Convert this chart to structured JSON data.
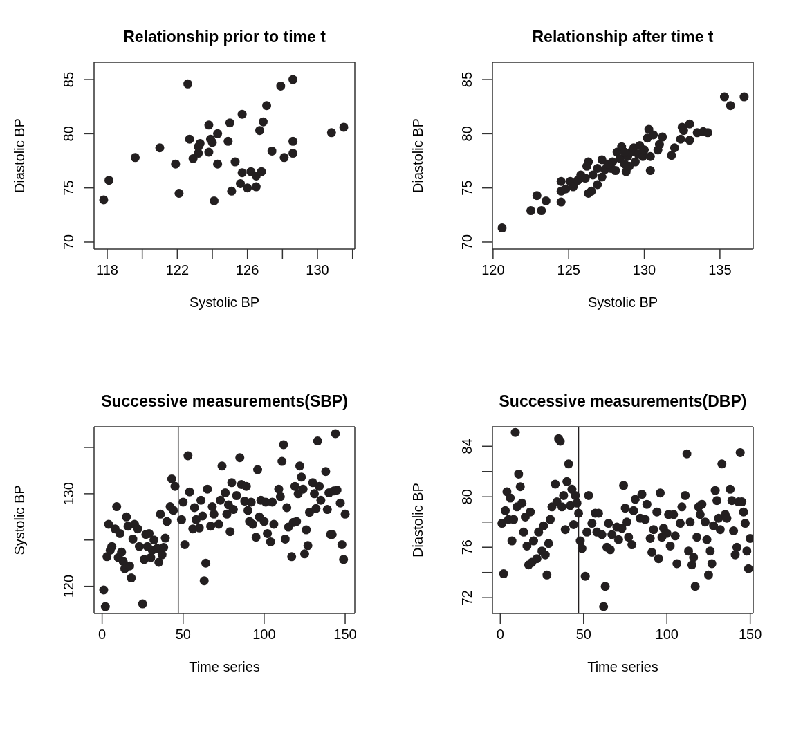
{
  "chart_data": [
    {
      "type": "scatter",
      "title": "Relationship prior to time t",
      "xlabel": "Systolic BP",
      "ylabel": "Diastolic BP",
      "color": "#231f20",
      "marker": "circle",
      "x": [
        117.8,
        118.1,
        119.6,
        121.0,
        121.9,
        122.1,
        122.6,
        122.7,
        122.9,
        123.2,
        123.2,
        123.3,
        123.8,
        123.8,
        123.9,
        124.0,
        124.3,
        124.1,
        124.3,
        124.9,
        125.0,
        125.1,
        125.3,
        125.6,
        125.7,
        125.7,
        126.0,
        126.2,
        126.5,
        126.5,
        126.8,
        126.7,
        126.9,
        127.1,
        127.4,
        127.9,
        128.1,
        128.6,
        128.6,
        128.6,
        130.8,
        131.5
      ],
      "values": [
        73.9,
        75.7,
        77.8,
        78.7,
        77.2,
        74.5,
        84.6,
        79.5,
        77.7,
        78.2,
        78.8,
        79.1,
        78.3,
        80.8,
        79.5,
        79.2,
        80.0,
        73.8,
        77.2,
        79.3,
        81.0,
        74.7,
        77.4,
        75.4,
        76.4,
        81.8,
        75.0,
        76.5,
        76.1,
        75.1,
        76.5,
        80.3,
        81.1,
        82.6,
        78.4,
        84.4,
        77.8,
        78.2,
        79.3,
        85.0,
        80.1,
        80.6
      ],
      "xlim": [
        117.25,
        132.13
      ],
      "xticks": [
        118,
        {
          "value": 120,
          "label": null
        },
        122,
        {
          "value": 124,
          "label": null
        },
        126,
        {
          "value": 128,
          "label": null
        },
        130,
        {
          "value": 132,
          "label": null
        }
      ],
      "ylim": [
        69.36,
        86.6
      ],
      "yticks": [
        70,
        75,
        80,
        85
      ]
    },
    {
      "type": "scatter",
      "title": "Relationship after time t",
      "xlabel": "Systolic BP",
      "ylabel": "Diastolic BP",
      "color": "#231f20",
      "marker": "circle",
      "x": [
        120.6,
        122.5,
        123.2,
        122.9,
        123.5,
        124.5,
        124.5,
        124.5,
        124.8,
        125.1,
        125.3,
        125.6,
        125.8,
        126.1,
        126.3,
        126.5,
        126.3,
        126.2,
        126.6,
        126.9,
        126.9,
        127.2,
        127.2,
        127.4,
        127.8,
        127.9,
        128.1,
        128.2,
        128.4,
        128.5,
        128.7,
        128.8,
        128.9,
        129.1,
        129.3,
        129.4,
        129.6,
        129.7,
        129.9,
        130.2,
        130.3,
        130.4,
        130.4,
        130.6,
        130.9,
        131.0,
        131.2,
        131.8,
        132.0,
        132.4,
        132.5,
        132.6,
        133.0,
        133.0,
        133.5,
        133.9,
        134.2,
        135.3,
        135.7,
        136.6,
        129.0,
        127.6,
        128.7,
        130.0
      ],
      "values": [
        71.3,
        72.9,
        72.9,
        74.3,
        73.8,
        73.7,
        74.7,
        75.6,
        74.9,
        75.6,
        75.1,
        75.7,
        76.2,
        75.9,
        74.5,
        74.7,
        77.4,
        77.0,
        76.2,
        76.8,
        75.3,
        77.6,
        76.0,
        76.7,
        76.8,
        77.4,
        76.6,
        78.3,
        77.7,
        78.8,
        77.2,
        76.5,
        77.9,
        78.3,
        78.7,
        77.4,
        78.1,
        78.9,
        77.9,
        79.6,
        80.4,
        77.9,
        76.6,
        79.9,
        78.5,
        79.0,
        79.7,
        78.0,
        78.7,
        79.5,
        80.6,
        80.3,
        80.9,
        79.4,
        80.1,
        80.2,
        80.1,
        83.4,
        82.6,
        83.4,
        77.0,
        77.2,
        78.3,
        78.5
      ],
      "xlim": [
        119.96,
        137.2
      ],
      "xticks": [
        120,
        125,
        130,
        135
      ],
      "ylim": [
        69.36,
        86.6
      ],
      "yticks": [
        70,
        75,
        80,
        85
      ]
    },
    {
      "type": "scatter",
      "title": "Successive measurements(SBP)",
      "xlabel": "Time series",
      "ylabel": "Systolic BP",
      "color": "#231f20",
      "marker": "circle",
      "x": [
        1,
        2,
        3,
        4,
        5,
        6,
        8,
        9,
        10,
        11,
        12,
        13,
        14,
        15,
        16,
        17,
        18,
        19,
        20,
        22,
        23,
        25,
        26,
        27,
        28,
        29,
        30,
        31,
        32,
        34,
        35,
        36,
        37,
        38,
        39,
        40,
        42,
        43,
        44,
        45,
        49,
        50,
        51,
        53,
        54,
        56,
        57,
        58,
        60,
        61,
        62,
        63,
        64,
        65,
        67,
        68,
        69,
        72,
        73,
        74,
        76,
        77,
        78,
        79,
        80,
        81,
        83,
        85,
        86,
        88,
        89,
        90,
        91,
        92,
        93,
        95,
        96,
        97,
        98,
        100,
        101,
        102,
        104,
        105,
        106,
        109,
        110,
        111,
        112,
        113,
        114,
        115,
        117,
        118,
        119,
        120,
        121,
        122,
        123,
        124,
        125,
        126,
        127,
        128,
        130,
        131,
        132,
        133,
        134,
        135,
        138,
        139,
        140,
        141,
        142,
        143,
        144,
        145,
        147,
        148,
        149,
        150
      ],
      "values": [
        119.6,
        117.8,
        123.2,
        126.7,
        123.9,
        124.3,
        126.2,
        128.6,
        123.1,
        125.7,
        123.7,
        122.7,
        121.9,
        127.5,
        126.5,
        122.2,
        120.9,
        125.1,
        126.7,
        126.2,
        124.3,
        118.1,
        122.9,
        125.6,
        124.3,
        125.7,
        123.1,
        123.9,
        125.0,
        124.1,
        122.6,
        127.8,
        123.4,
        124.2,
        125.2,
        127.0,
        128.6,
        131.6,
        128.2,
        130.8,
        127.2,
        129.1,
        124.5,
        134.1,
        130.2,
        126.2,
        128.5,
        127.2,
        126.3,
        129.3,
        127.6,
        120.6,
        122.5,
        130.5,
        126.5,
        128.6,
        127.8,
        126.7,
        129.3,
        133.0,
        130.1,
        127.8,
        128.8,
        125.9,
        131.2,
        128.3,
        129.8,
        133.9,
        131.0,
        129.2,
        130.8,
        128.2,
        127.0,
        129.1,
        126.7,
        125.3,
        132.6,
        127.5,
        129.3,
        127.0,
        129.1,
        125.7,
        124.8,
        129.1,
        126.7,
        130.5,
        129.7,
        133.5,
        135.3,
        125.1,
        128.5,
        126.4,
        123.2,
        126.9,
        130.8,
        127.0,
        130.0,
        133.0,
        131.8,
        130.5,
        123.5,
        126.1,
        124.4,
        128.0,
        131.2,
        130.0,
        128.4,
        135.7,
        130.8,
        129.3,
        132.4,
        128.3,
        130.1,
        125.6,
        125.6,
        130.3,
        136.5,
        130.4,
        129.0,
        124.5,
        122.9,
        127.8
      ],
      "xlim": [
        -4.96,
        155.96
      ],
      "xticks": [
        0,
        50,
        100,
        150
      ],
      "ylim": [
        117.06,
        137.24
      ],
      "yticks": [
        120,
        {
          "value": 125,
          "label": null
        },
        130,
        {
          "value": 135,
          "label": null
        }
      ],
      "ref_lines": [
        {
          "axis": "x",
          "value": 47,
          "color": "#231f20"
        }
      ]
    },
    {
      "type": "scatter",
      "title": "Successive measurements(DBP)",
      "xlabel": "Time series",
      "ylabel": "Diastolic BP",
      "color": "#231f20",
      "marker": "circle",
      "x": [
        1,
        2,
        3,
        4,
        5,
        6,
        7,
        8,
        9,
        10,
        11,
        12,
        13,
        14,
        15,
        16,
        17,
        18,
        19,
        20,
        22,
        23,
        25,
        26,
        27,
        28,
        29,
        30,
        31,
        33,
        34,
        35,
        36,
        37,
        38,
        39,
        40,
        41,
        42,
        43,
        44,
        45,
        46,
        47,
        48,
        49,
        51,
        52,
        53,
        55,
        57,
        58,
        59,
        61,
        62,
        63,
        64,
        65,
        66,
        67,
        70,
        71,
        73,
        74,
        75,
        76,
        77,
        79,
        80,
        81,
        84,
        85,
        87,
        88,
        90,
        91,
        92,
        94,
        95,
        96,
        97,
        98,
        100,
        101,
        102,
        104,
        105,
        106,
        108,
        109,
        111,
        112,
        113,
        114,
        115,
        116,
        117,
        118,
        119,
        120,
        121,
        123,
        124,
        125,
        126,
        127,
        128,
        129,
        130,
        131,
        132,
        133,
        135,
        136,
        138,
        139,
        140,
        141,
        142,
        143,
        144,
        145,
        146,
        147,
        148,
        149,
        150
      ],
      "values": [
        77.9,
        73.9,
        78.9,
        80.4,
        78.2,
        79.9,
        76.5,
        78.2,
        85.1,
        79.2,
        81.8,
        80.8,
        79.5,
        77.2,
        78.4,
        76.1,
        74.6,
        78.8,
        74.8,
        76.5,
        75.1,
        77.2,
        75.7,
        77.7,
        75.4,
        73.8,
        76.3,
        78.2,
        79.2,
        81.0,
        79.6,
        84.6,
        84.4,
        79.2,
        80.1,
        77.4,
        81.2,
        82.6,
        79.3,
        80.6,
        77.8,
        80.1,
        79.5,
        78.7,
        76.5,
        75.9,
        73.7,
        77.2,
        80.1,
        77.9,
        78.7,
        77.2,
        78.7,
        77.0,
        71.3,
        72.9,
        76.0,
        77.9,
        75.8,
        77.0,
        77.6,
        76.6,
        77.5,
        80.9,
        79.1,
        78.0,
        76.8,
        76.2,
        78.9,
        79.8,
        78.3,
        80.2,
        78.2,
        79.4,
        76.7,
        75.6,
        77.4,
        78.8,
        75.1,
        80.3,
        76.8,
        77.5,
        77.1,
        78.6,
        76.1,
        78.6,
        76.9,
        74.7,
        77.9,
        79.2,
        80.1,
        83.4,
        75.7,
        78.0,
        74.6,
        75.2,
        72.9,
        76.8,
        79.2,
        78.6,
        79.4,
        78.0,
        76.6,
        73.8,
        75.7,
        74.7,
        77.7,
        80.5,
        79.7,
        78.3,
        77.4,
        82.6,
        78.6,
        78.3,
        80.6,
        79.7,
        77.3,
        75.4,
        76.0,
        79.6,
        83.5,
        79.6,
        78.8,
        77.9,
        75.7,
        74.3,
        76.7
      ],
      "xlim": [
        -4.7,
        151.8
      ],
      "xticks": [
        0,
        50,
        100,
        150
      ],
      "ylim": [
        70.75,
        85.55
      ],
      "yticks": [
        72,
        {
          "value": 74,
          "label": null
        },
        76,
        {
          "value": 78,
          "label": null
        },
        80,
        {
          "value": 82,
          "label": null
        },
        84
      ],
      "ref_lines": [
        {
          "axis": "x",
          "value": 47,
          "color": "#231f20"
        }
      ]
    }
  ]
}
